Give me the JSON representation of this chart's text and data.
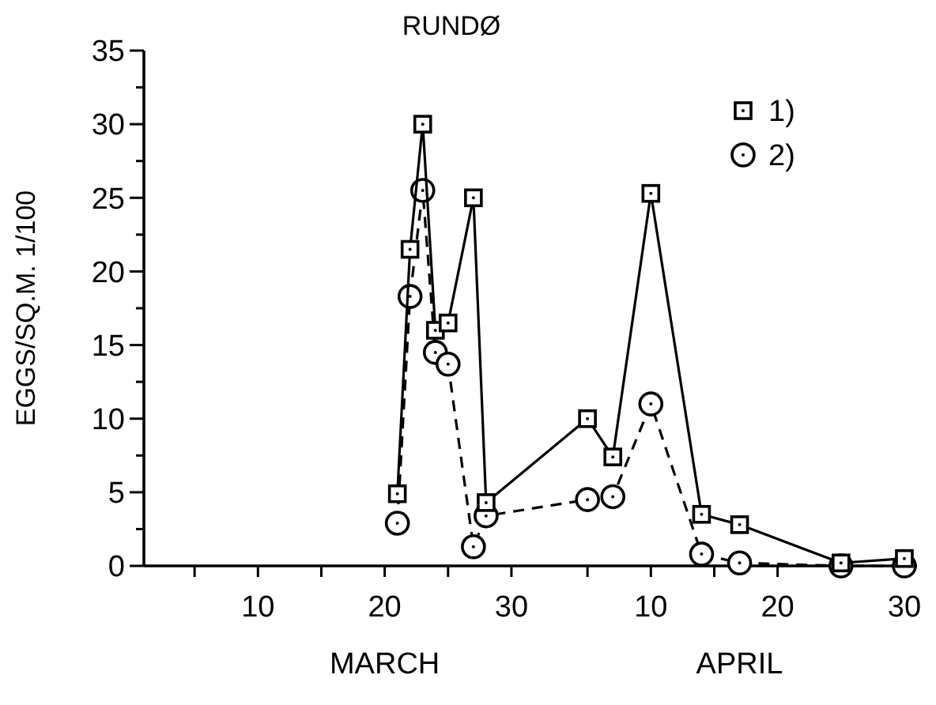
{
  "chart_data": {
    "type": "line",
    "title": "RUNDØ",
    "ylabel": "EGGS/SQ.M. 1/100",
    "annotations": [
      "MARCH",
      "APRIL"
    ],
    "xlim": [
      "--03-01",
      "--05-01"
    ],
    "xticks": [
      {
        "value": "--03-05",
        "label": null
      },
      {
        "value": "--03-10",
        "label": "10"
      },
      {
        "value": "--03-15",
        "label": null
      },
      {
        "value": "--03-20",
        "label": "20"
      },
      {
        "value": "--03-25",
        "label": null
      },
      {
        "value": "--03-30",
        "label": "30"
      },
      {
        "value": "--04-05",
        "label": null
      },
      {
        "value": "--04-10",
        "label": "10"
      },
      {
        "value": "--04-15",
        "label": null
      },
      {
        "value": "--04-20",
        "label": "20"
      },
      {
        "value": "--04-25",
        "label": null
      },
      {
        "value": "--04-30",
        "label": "30"
      }
    ],
    "ylim": [
      0,
      35
    ],
    "yticks": [
      0,
      {
        "value": 2.5,
        "label": null
      },
      5,
      {
        "value": 7.5,
        "label": null
      },
      10,
      {
        "value": 12.5,
        "label": null
      },
      15,
      {
        "value": 17.5,
        "label": null
      },
      20,
      {
        "value": 22.5,
        "label": null
      },
      25,
      {
        "value": 27.5,
        "label": null
      },
      30,
      {
        "value": 32.5,
        "label": null
      },
      35
    ],
    "legend": "top right",
    "grid": false,
    "series": [
      {
        "name": "1)",
        "color": "#000000",
        "marker": "square",
        "line_style": "solid",
        "x": [
          "--03-21",
          "--03-22",
          "--03-23",
          "--03-24",
          "--03-25",
          "--03-27",
          "--03-28",
          "--04-05",
          "--04-07",
          "--04-10",
          "--04-14",
          "--04-17",
          "--04-25",
          "--04-30"
        ],
        "values": [
          4.9,
          21.5,
          30,
          16,
          16.5,
          25,
          4.3,
          10,
          7.4,
          25.3,
          3.5,
          2.8,
          0.2,
          0.5
        ]
      },
      {
        "name": "2)",
        "color": "#000000",
        "marker": "circle",
        "line_style": "dashed",
        "x": [
          "--03-21",
          "--03-22",
          "--03-23",
          "--03-24",
          "--03-25",
          "--03-27",
          "--03-28",
          "--04-05",
          "--04-07",
          "--04-10",
          "--04-14",
          "--04-17",
          "--04-25",
          "--04-30"
        ],
        "values": [
          2.9,
          18.3,
          25.5,
          14.5,
          13.7,
          1.3,
          3.4,
          4.5,
          4.7,
          11,
          0.8,
          0.2,
          0,
          0
        ]
      }
    ]
  }
}
